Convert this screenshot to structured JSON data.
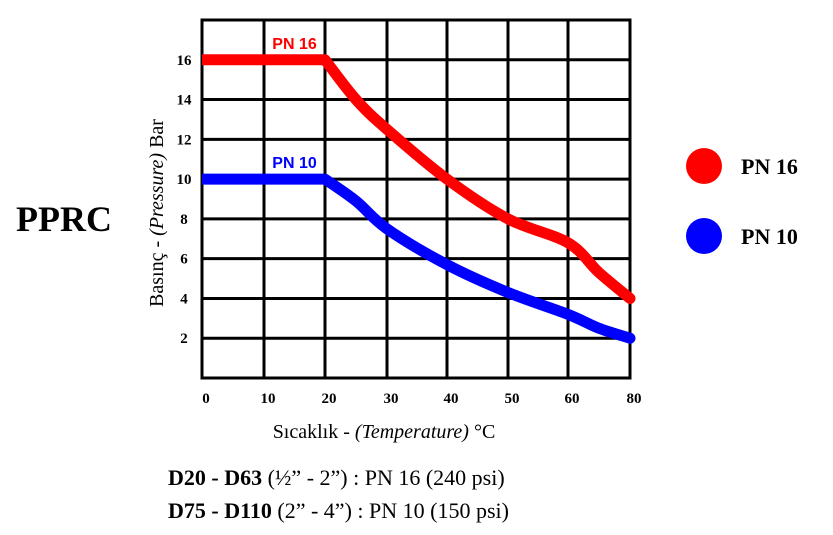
{
  "chart_data": {
    "type": "line",
    "title": "PPRC",
    "xlabel_plain": "Sıcaklık - ",
    "xlabel_italic": "(Temperature)",
    "xlabel_unit": " °C",
    "ylabel_plain": "Basınç - ",
    "ylabel_italic": "(Pressure)",
    "ylabel_unit": " Bar",
    "xlim": [
      0,
      80
    ],
    "ylim": [
      0,
      18
    ],
    "x_ticks": [
      "0",
      "10",
      "20",
      "30",
      "40",
      "50",
      "60",
      "80"
    ],
    "x_tick_values": [
      0,
      10,
      20,
      30,
      40,
      50,
      60,
      80
    ],
    "y_ticks": [
      "2",
      "4",
      "6",
      "8",
      "10",
      "12",
      "14",
      "16"
    ],
    "y_tick_values": [
      2,
      4,
      6,
      8,
      10,
      12,
      14,
      16
    ],
    "grid": true,
    "legend_position": "right",
    "series": [
      {
        "name": "PN 16",
        "color": "#ff0000",
        "x": [
          0,
          20,
          25,
          30,
          40,
          50,
          60,
          70,
          80
        ],
        "y": [
          16,
          16,
          14,
          12.5,
          10,
          8,
          6.8,
          5.3,
          4
        ],
        "label": "PN 16"
      },
      {
        "name": "PN 10",
        "color": "#0000ff",
        "x": [
          0,
          20,
          25,
          30,
          40,
          50,
          60,
          70,
          80
        ],
        "y": [
          10,
          10,
          8.9,
          7.5,
          5.7,
          4.3,
          3.2,
          2.5,
          2
        ],
        "label": "PN 10"
      }
    ],
    "legend": [
      {
        "name": "PN 16",
        "color": "#ff0000"
      },
      {
        "name": "PN 10",
        "color": "#0000ff"
      }
    ]
  },
  "notes": [
    {
      "bold": "D20 - D63",
      "rest": "  (½” - 2”) : PN 16 (240 psi)"
    },
    {
      "bold": "D75 - D110",
      "rest": " (2” - 4”) : PN 10 (150 psi)"
    }
  ]
}
